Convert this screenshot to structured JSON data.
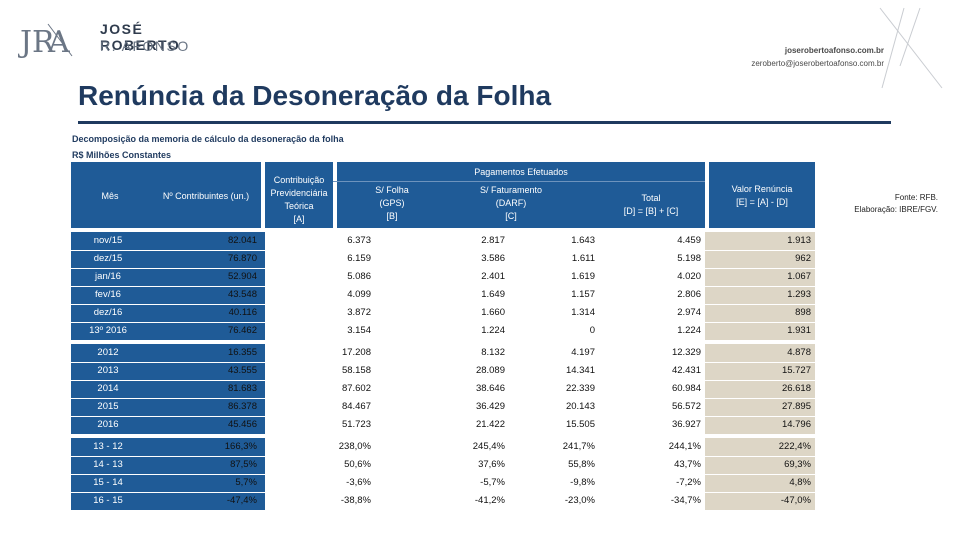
{
  "brand": {
    "name_line1": "JOSÉ ROBERTO",
    "name_line2": "R. AFONSO",
    "mark_letters": "JRA"
  },
  "contact": {
    "site": "joserobertoafonso.com.br",
    "email": "zeroberto@joserobertoafonso.com.br"
  },
  "title": "Renúncia da Desoneração da Folha",
  "source": {
    "line1": "Fonte: RFB.",
    "line2": "Elaboração: IBRE/FGV."
  },
  "table": {
    "caption1": "Decomposição da memoria de cálculo da desoneração da folha",
    "caption2": "R$ Milhões Constantes",
    "headers": {
      "mes": "Mês",
      "contribuintes": "Nº Contribuintes (un.)",
      "contrib_l1": "Contribuição",
      "contrib_l2": "Previdenciária Teórica",
      "contrib_l3": "[A]",
      "pagamentos": "Pagamentos Efetuados",
      "gps_l1": "S/ Folha",
      "gps_l2": "(GPS)",
      "gps_l3": "[B]",
      "darf_l1": "S/ Faturamento",
      "darf_l2": "(DARF)",
      "darf_l3": "[C]",
      "total_l1": "Total",
      "total_l2": "[D] = [B] + [C]",
      "renuncia_l1": "Valor Renúncia",
      "renuncia_l2": "[E] = [A] - [D]"
    },
    "monthly": [
      {
        "mes": "nov/15",
        "n": "82.041",
        "c": "6.373",
        "g": "2.817",
        "d": "1.643",
        "t": "4.459",
        "r": "1.913"
      },
      {
        "mes": "dez/15",
        "n": "76.870",
        "c": "6.159",
        "g": "3.586",
        "d": "1.611",
        "t": "5.198",
        "r": "962"
      },
      {
        "mes": "jan/16",
        "n": "52.904",
        "c": "5.086",
        "g": "2.401",
        "d": "1.619",
        "t": "4.020",
        "r": "1.067"
      },
      {
        "mes": "fev/16",
        "n": "43.548",
        "c": "4.099",
        "g": "1.649",
        "d": "1.157",
        "t": "2.806",
        "r": "1.293"
      },
      {
        "mes": "dez/16",
        "n": "40.116",
        "c": "3.872",
        "g": "1.660",
        "d": "1.314",
        "t": "2.974",
        "r": "898"
      },
      {
        "mes": "13º 2016",
        "n": "76.462",
        "c": "3.154",
        "g": "1.224",
        "d": "0",
        "t": "1.224",
        "r": "1.931"
      }
    ],
    "annual": [
      {
        "mes": "2012",
        "n": "16.355",
        "c": "17.208",
        "g": "8.132",
        "d": "4.197",
        "t": "12.329",
        "r": "4.878"
      },
      {
        "mes": "2013",
        "n": "43.555",
        "c": "58.158",
        "g": "28.089",
        "d": "14.341",
        "t": "42.431",
        "r": "15.727"
      },
      {
        "mes": "2014",
        "n": "81.683",
        "c": "87.602",
        "g": "38.646",
        "d": "22.339",
        "t": "60.984",
        "r": "26.618"
      },
      {
        "mes": "2015",
        "n": "86.378",
        "c": "84.467",
        "g": "36.429",
        "d": "20.143",
        "t": "56.572",
        "r": "27.895"
      },
      {
        "mes": "2016",
        "n": "45.456",
        "c": "51.723",
        "g": "21.422",
        "d": "15.505",
        "t": "36.927",
        "r": "14.796"
      }
    ],
    "variation": [
      {
        "mes": "13 - 12",
        "n": "166,3%",
        "c": "238,0%",
        "g": "245,4%",
        "d": "241,7%",
        "t": "244,1%",
        "r": "222,4%"
      },
      {
        "mes": "14 - 13",
        "n": "87,5%",
        "c": "50,6%",
        "g": "37,6%",
        "d": "55,8%",
        "t": "43,7%",
        "r": "69,3%"
      },
      {
        "mes": "15 - 14",
        "n": "5,7%",
        "c": "-3,6%",
        "g": "-5,7%",
        "d": "-9,8%",
        "t": "-7,2%",
        "r": "4,8%"
      },
      {
        "mes": "16 - 15",
        "n": "-47,4%",
        "c": "-38,8%",
        "g": "-41,2%",
        "d": "-23,0%",
        "t": "-34,7%",
        "r": "-47,0%"
      }
    ]
  }
}
